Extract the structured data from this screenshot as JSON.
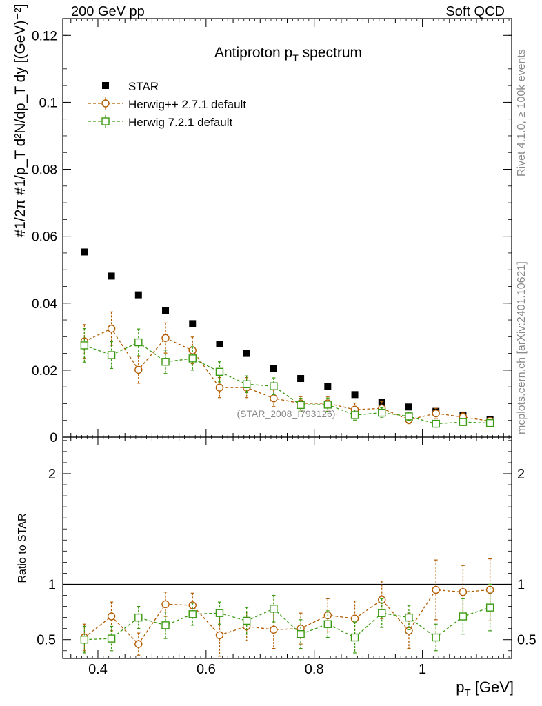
{
  "header": {
    "left": "200 GeV pp",
    "right": "Soft QCD"
  },
  "side": {
    "rivet": "Rivet 4.1.0, ≥ 100k events",
    "mcplots": "mcplots.cern.ch [arXiv:2401.10621]"
  },
  "colors": {
    "star": "#000000",
    "herwigpp": "#b35c00",
    "herwig7": "#3a9a10",
    "ref": "#888888"
  },
  "chart_data": [
    {
      "type": "scatter",
      "panel": "main",
      "title": "Antiproton p_T spectrum",
      "ref_tag": "(STAR_2008_I793126)",
      "xlabel": "p_T [GeV]",
      "ylabel": "1/2π 1/p_T d²N/dp_T dy [(GeV)^-2]",
      "xlim": [
        0.335,
        1.165
      ],
      "ylim": [
        0,
        0.125
      ],
      "yticks": [
        0,
        0.02,
        0.04,
        0.06,
        0.08,
        0.1,
        0.12
      ],
      "ytick_labels": [
        "0",
        "0.02",
        "0.04",
        "0.06",
        "0.08",
        "0.1",
        "0.12"
      ],
      "x": [
        0.375,
        0.425,
        0.475,
        0.525,
        0.575,
        0.625,
        0.675,
        0.725,
        0.775,
        0.825,
        0.875,
        0.925,
        0.975,
        1.025,
        1.075,
        1.125
      ],
      "series": [
        {
          "name": "STAR",
          "marker": "filled-square",
          "values": [
            0.0553,
            0.0481,
            0.0425,
            0.0378,
            0.0339,
            0.0278,
            0.025,
            0.0205,
            0.0175,
            0.0152,
            0.0127,
            0.0104,
            0.009,
            0.0077,
            0.0066,
            0.0053
          ],
          "errors": [
            0,
            0,
            0,
            0,
            0,
            0,
            0,
            0,
            0,
            0,
            0,
            0,
            0,
            0,
            0,
            0
          ]
        },
        {
          "name": "Herwig++ 2.7.1 default",
          "marker": "open-circle",
          "values": [
            0.0286,
            0.0324,
            0.0201,
            0.0296,
            0.0259,
            0.0148,
            0.0148,
            0.0116,
            0.0101,
            0.0101,
            0.0082,
            0.0086,
            0.0052,
            0.0071,
            0.006,
            0.0048
          ],
          "errors": [
            0.005,
            0.005,
            0.004,
            0.0045,
            0.004,
            0.003,
            0.003,
            0.0025,
            0.002,
            0.002,
            0.002,
            0.002,
            0.0012,
            0.0015,
            0.0012,
            0.001
          ]
        },
        {
          "name": "Herwig 7.2.1 default",
          "marker": "open-square",
          "values": [
            0.0274,
            0.0245,
            0.0283,
            0.0225,
            0.0235,
            0.0195,
            0.0158,
            0.0152,
            0.0096,
            0.0097,
            0.0066,
            0.0073,
            0.0062,
            0.004,
            0.0045,
            0.0042
          ],
          "errors": [
            0.005,
            0.004,
            0.004,
            0.0035,
            0.0035,
            0.003,
            0.0025,
            0.0025,
            0.002,
            0.002,
            0.0015,
            0.0015,
            0.0013,
            0.001,
            0.001,
            0.001
          ]
        }
      ]
    },
    {
      "type": "scatter",
      "panel": "ratio",
      "ylabel": "Ratio to STAR",
      "xlabel": "p_T [GeV]",
      "xlim": [
        0.335,
        1.165
      ],
      "ylim": [
        0.33,
        2.33
      ],
      "xticks": [
        0.4,
        0.6,
        0.8,
        1.0
      ],
      "xtick_labels": [
        "0.4",
        "0.6",
        "0.8",
        "1"
      ],
      "yticks": [
        0.5,
        1,
        2
      ],
      "ytick_labels": [
        "0.5",
        "1",
        "2"
      ],
      "reference_line": 1,
      "x": [
        0.375,
        0.425,
        0.475,
        0.525,
        0.575,
        0.625,
        0.675,
        0.725,
        0.775,
        0.825,
        0.875,
        0.925,
        0.975,
        1.025,
        1.075,
        1.125
      ],
      "series": [
        {
          "name": "Herwig++ 2.7.1 default",
          "marker": "open-circle",
          "values": [
            0.52,
            0.71,
            0.46,
            0.82,
            0.81,
            0.54,
            0.62,
            0.59,
            0.6,
            0.72,
            0.69,
            0.86,
            0.58,
            0.95,
            0.93,
            0.95
          ],
          "errors": [
            0.12,
            0.13,
            0.1,
            0.11,
            0.11,
            0.19,
            0.13,
            0.17,
            0.14,
            0.15,
            0.16,
            0.17,
            0.16,
            0.27,
            0.24,
            0.28
          ]
        },
        {
          "name": "Herwig 7.2.1 default",
          "marker": "open-square",
          "values": [
            0.5,
            0.51,
            0.7,
            0.63,
            0.73,
            0.74,
            0.67,
            0.78,
            0.55,
            0.64,
            0.52,
            0.74,
            0.7,
            0.52,
            0.71,
            0.79
          ],
          "errors": [
            0.12,
            0.11,
            0.1,
            0.12,
            0.1,
            0.1,
            0.12,
            0.12,
            0.13,
            0.12,
            0.14,
            0.13,
            0.11,
            0.12,
            0.16,
            0.21
          ]
        }
      ]
    }
  ]
}
